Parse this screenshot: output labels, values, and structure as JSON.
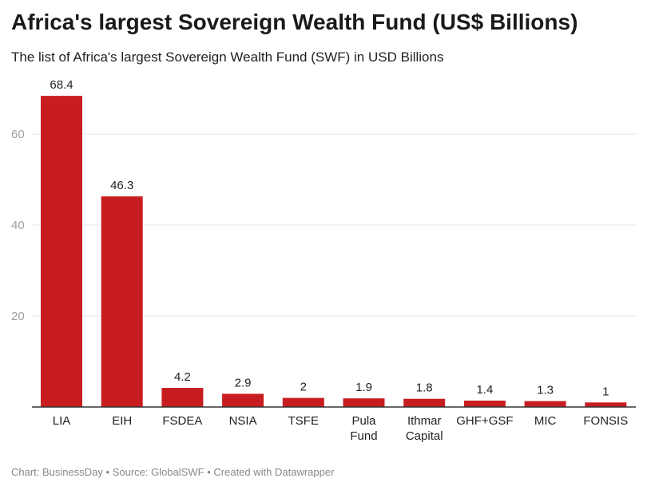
{
  "title": "Africa's largest Sovereign Wealth Fund (US$ Billions)",
  "subtitle": "The list of Africa's largest Sovereign Wealth Fund (SWF) in USD Billions",
  "footer": {
    "chart_by": "Chart: BusinessDay",
    "separator": "•",
    "source": "Source: GlobalSWF",
    "created_with": "Created with Datawrapper"
  },
  "colors": {
    "bar": "#c81d20",
    "grid": "#e6e6e6",
    "axis": "#333333"
  },
  "chart_data": {
    "type": "bar",
    "title": "Africa's largest Sovereign Wealth Fund (US$ Billions)",
    "subtitle": "The list of Africa's largest Sovereign Wealth Fund (SWF) in USD Billions",
    "xlabel": "",
    "ylabel": "",
    "categories": [
      [
        "LIA"
      ],
      [
        "EIH"
      ],
      [
        "FSDEA"
      ],
      [
        "NSIA"
      ],
      [
        "TSFE"
      ],
      [
        "Pula",
        "Fund"
      ],
      [
        "Ithmar",
        "Capital"
      ],
      [
        "GHF+GSF"
      ],
      [
        "MIC"
      ],
      [
        "FONSIS"
      ]
    ],
    "values": [
      68.4,
      46.3,
      4.2,
      2.9,
      2,
      1.9,
      1.8,
      1.4,
      1.3,
      1
    ],
    "value_labels": [
      "68.4",
      "46.3",
      "4.2",
      "2.9",
      "2",
      "1.9",
      "1.8",
      "1.4",
      "1.3",
      "1"
    ],
    "yticks": [
      20,
      40,
      60
    ],
    "ylim": [
      0,
      70
    ],
    "grid": true,
    "legend": "none"
  }
}
